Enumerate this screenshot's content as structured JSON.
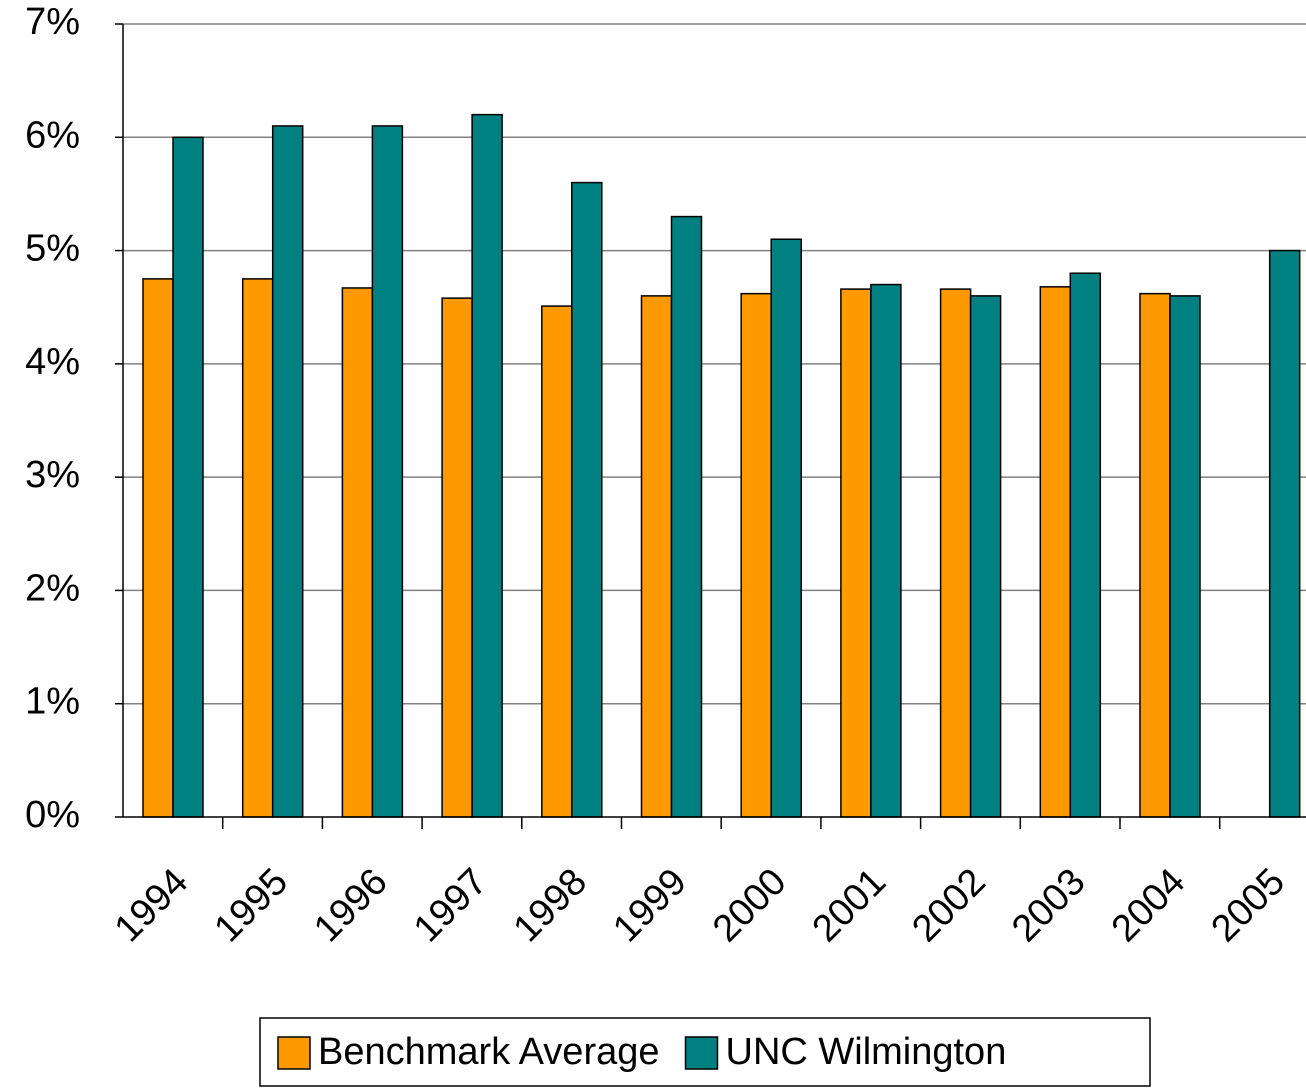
{
  "chart_data": {
    "type": "bar",
    "categories": [
      "1994",
      "1995",
      "1996",
      "1997",
      "1998",
      "1999",
      "2000",
      "2001",
      "2002",
      "2003",
      "2004",
      "2005"
    ],
    "series": [
      {
        "name": "Benchmark Average",
        "color": "#ff9900",
        "values": [
          4.75,
          4.75,
          4.67,
          4.58,
          4.51,
          4.6,
          4.62,
          4.66,
          4.66,
          4.68,
          4.62,
          null
        ]
      },
      {
        "name": "UNC Wilmington",
        "color": "#008080",
        "values": [
          6.0,
          6.1,
          6.1,
          6.2,
          5.6,
          5.3,
          5.1,
          4.7,
          4.6,
          4.8,
          4.6,
          5.0
        ]
      }
    ],
    "ylim": [
      0,
      7
    ],
    "yticks": [
      {
        "value": 0,
        "label": "0%"
      },
      {
        "value": 1,
        "label": "1%"
      },
      {
        "value": 2,
        "label": "2%"
      },
      {
        "value": 3,
        "label": "3%"
      },
      {
        "value": 4,
        "label": "4%"
      },
      {
        "value": 5,
        "label": "5%"
      },
      {
        "value": 6,
        "label": "6%"
      },
      {
        "value": 7,
        "label": "7%"
      }
    ],
    "grid": true,
    "legend": "bottom"
  }
}
